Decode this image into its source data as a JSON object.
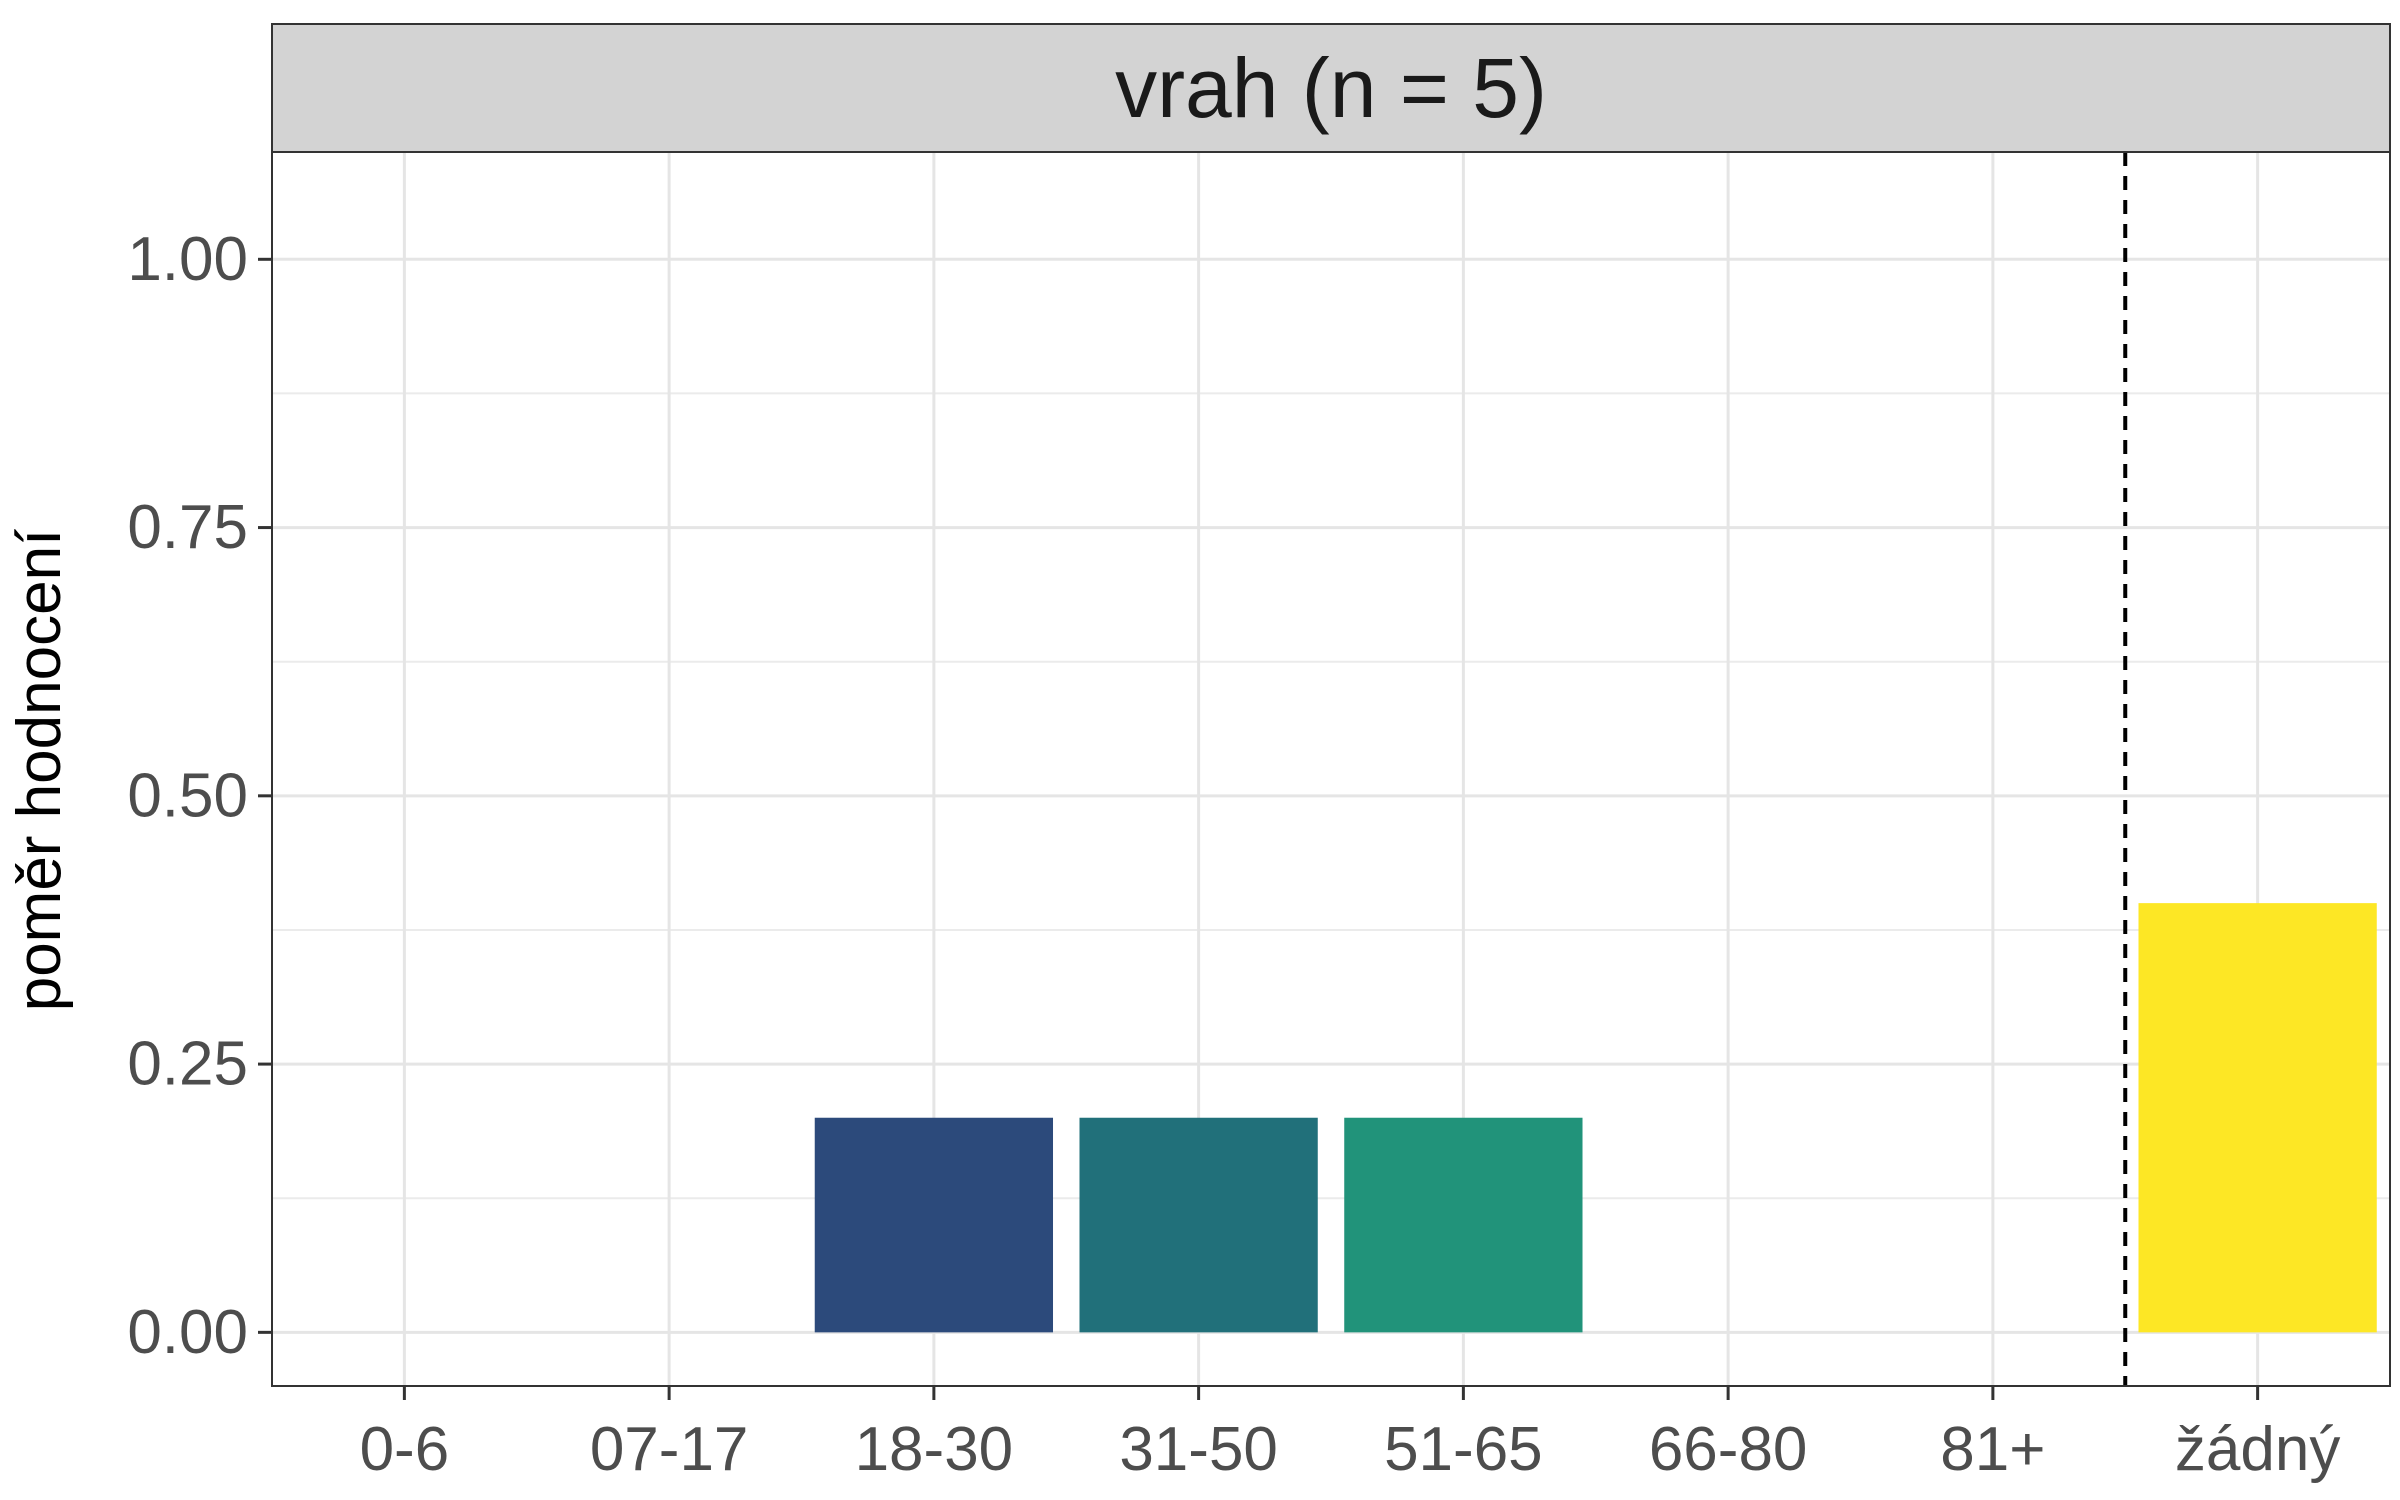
{
  "chart_data": {
    "type": "bar",
    "facet_title": "vrah (n = 5)",
    "xlabel": "",
    "ylabel": "poměr hodnocení",
    "categories": [
      "0-6",
      "07-17",
      "18-30",
      "31-50",
      "51-65",
      "66-80",
      "81+",
      "žádný"
    ],
    "values": [
      0,
      0,
      0.2,
      0.2,
      0.2,
      0,
      0,
      0.4
    ],
    "colors": [
      "#440154",
      "#46337E",
      "#2C4A7B",
      "#21707A",
      "#21937A",
      "#5EC962",
      "#B4DE2C",
      "#FDE725"
    ],
    "ylim": [
      -0.05,
      1.1
    ],
    "yticks": [
      0,
      0.25,
      0.5,
      0.75,
      1
    ],
    "ytick_labels": [
      "0.00",
      "0.25",
      "0.50",
      "0.75",
      "1.00"
    ],
    "reference_line": {
      "style": "dashed",
      "between_categories": [
        "81+",
        "žádný"
      ]
    },
    "grid": true,
    "legend": "none"
  }
}
